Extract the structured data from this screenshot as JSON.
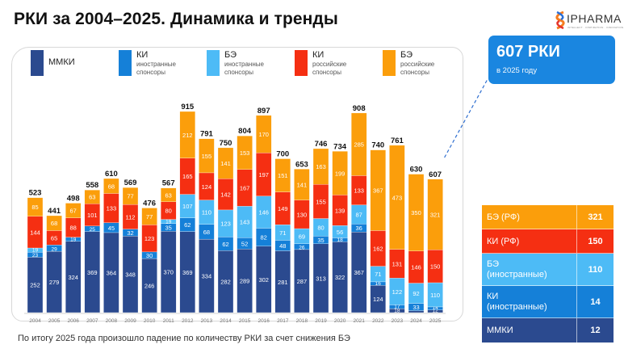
{
  "header": {
    "title": "РКИ за 2004–2025. Динамика и тренды",
    "logo_text": "IPHARMA",
    "logo_tagline": "INTELLECT · INSPIRATION · INNOVATION"
  },
  "callout": {
    "value": "607 РКИ",
    "caption": "в 2025 году"
  },
  "legend": [
    {
      "main": "ММКИ",
      "sub1": "",
      "sub2": "",
      "color": "#2b4a8f"
    },
    {
      "main": "КИ",
      "sub1": "иностранные",
      "sub2": "спонсоры",
      "color": "#1580d8"
    },
    {
      "main": "БЭ",
      "sub1": "иностранные",
      "sub2": "спонсоры",
      "color": "#4dbbf6"
    },
    {
      "main": "КИ",
      "sub1": "российские",
      "sub2": "спонсоры",
      "color": "#f52f12"
    },
    {
      "main": "БЭ",
      "sub1": "российские",
      "sub2": "спонсоры",
      "color": "#fb9e0b"
    }
  ],
  "summary_table": {
    "rows": [
      {
        "label1": "БЭ (РФ)",
        "label2": "",
        "value": "321",
        "color": "#fb9e0b"
      },
      {
        "label1": "КИ (РФ)",
        "label2": "",
        "value": "150",
        "color": "#f52f12"
      },
      {
        "label1": "БЭ",
        "label2": "(иностранные)",
        "value": "110",
        "color": "#4dbbf6"
      },
      {
        "label1": "КИ",
        "label2": "(иностранные)",
        "value": "14",
        "color": "#1580d8"
      },
      {
        "label1": "ММКИ",
        "label2": "",
        "value": "12",
        "color": "#2b4a8f"
      }
    ]
  },
  "footnote": "По итогу 2025 года произошло падение по количеству РКИ за счет снижения БЭ",
  "chart_data": {
    "type": "bar",
    "stacked": true,
    "title": "РКИ за 2004–2025. Динамика и тренды",
    "xlabel": "",
    "ylabel": "",
    "ylim": [
      0,
      950
    ],
    "grid": false,
    "legend_position": "top",
    "categories": [
      "2004",
      "2005",
      "2006",
      "2007",
      "2008",
      "2009",
      "2010",
      "2011",
      "2012",
      "2013",
      "2014",
      "2015",
      "2016",
      "2017",
      "2018",
      "2019",
      "2020",
      "2021",
      "2022",
      "2023",
      "2024",
      "2025"
    ],
    "series": [
      {
        "name": "ММКИ",
        "color": "#2b4a8f",
        "values": [
          252,
          279,
          324,
          369,
          364,
          348,
          246,
          370,
          369,
          334,
          282,
          289,
          302,
          281,
          287,
          313,
          322,
          367,
          124,
          18,
          9,
          12
        ]
      },
      {
        "name": "КИ иностранные спонсоры",
        "color": "#1580d8",
        "values": [
          23,
          29,
          19,
          25,
          45,
          32,
          30,
          35,
          62,
          68,
          62,
          52,
          82,
          48,
          26,
          35,
          18,
          36,
          16,
          17,
          33,
          14
        ]
      },
      {
        "name": "БЭ иностранные спонсоры",
        "color": "#4dbbf6",
        "values": [
          19,
          0,
          0,
          0,
          0,
          0,
          0,
          19,
          107,
          110,
          123,
          143,
          146,
          71,
          69,
          80,
          56,
          87,
          71,
          122,
          92,
          110
        ]
      },
      {
        "name": "КИ российские спонсоры",
        "color": "#f52f12",
        "values": [
          144,
          65,
          88,
          101,
          133,
          112,
          123,
          80,
          165,
          124,
          142,
          167,
          197,
          149,
          130,
          155,
          139,
          133,
          162,
          131,
          146,
          150
        ]
      },
      {
        "name": "БЭ российские спонсоры",
        "color": "#fb9e0b",
        "values": [
          85,
          68,
          67,
          63,
          68,
          77,
          77,
          63,
          212,
          155,
          141,
          153,
          170,
          151,
          141,
          163,
          199,
          285,
          367,
          473,
          350,
          321
        ]
      }
    ],
    "totals": [
      523,
      441,
      498,
      558,
      610,
      569,
      476,
      567,
      915,
      791,
      750,
      804,
      897,
      700,
      653,
      746,
      734,
      908,
      740,
      761,
      630,
      607
    ]
  }
}
